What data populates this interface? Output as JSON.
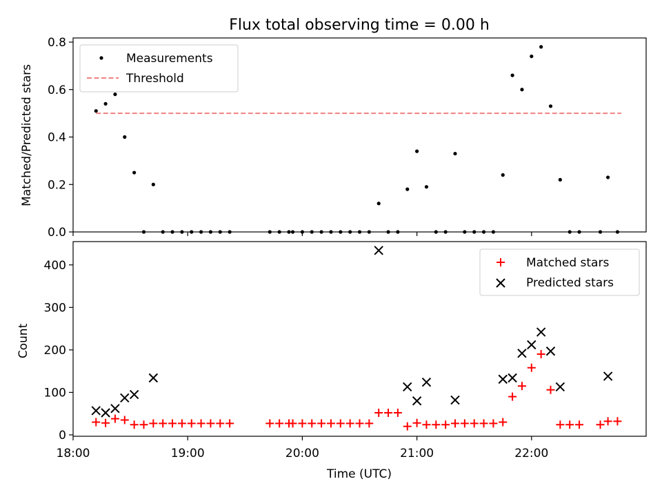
{
  "chart_data": [
    {
      "type": "scatter",
      "title": "Flux total observing time = 0.00 h",
      "xlabel": "",
      "ylabel": "Matched/Predicted stars",
      "xlim": [
        "18:00",
        "23:00"
      ],
      "ylim": [
        0,
        0.8
      ],
      "yticks": [
        "0.0",
        "0.2",
        "0.4",
        "0.6",
        "0.8"
      ],
      "legend": {
        "placement": "upper-left",
        "entries": [
          "Measurements",
          "Threshold"
        ]
      },
      "threshold": {
        "name": "Threshold",
        "value": 0.5,
        "x_start": "18:12",
        "x_end": "22:47",
        "color": "#f08080"
      },
      "series": [
        {
          "name": "Measurements",
          "color": "#000000",
          "x": [
            "18:12",
            "18:17",
            "18:22",
            "18:27",
            "18:32",
            "18:37",
            "18:42",
            "18:47",
            "18:52",
            "18:57",
            "19:02",
            "19:07",
            "19:12",
            "19:17",
            "19:22",
            "19:43",
            "19:48",
            "19:53",
            "19:55",
            "20:00",
            "20:05",
            "20:10",
            "20:15",
            "20:20",
            "20:25",
            "20:30",
            "20:35",
            "20:40",
            "20:45",
            "20:50",
            "20:55",
            "21:00",
            "21:05",
            "21:10",
            "21:15",
            "21:20",
            "21:25",
            "21:30",
            "21:35",
            "21:40",
            "21:45",
            "21:50",
            "21:55",
            "22:00",
            "22:05",
            "22:10",
            "22:15",
            "22:20",
            "22:25",
            "22:36",
            "22:40",
            "22:45"
          ],
          "y": [
            0.51,
            0.54,
            0.58,
            0.4,
            0.25,
            0,
            0.2,
            0,
            0,
            0,
            0,
            0,
            0,
            0,
            0,
            0,
            0,
            0,
            0,
            0,
            0,
            0,
            0,
            0,
            0,
            0,
            0,
            0.12,
            0,
            0,
            0.18,
            0.34,
            0.19,
            0,
            0,
            0.33,
            0,
            0,
            0,
            0,
            0.24,
            0.66,
            0.6,
            0.74,
            0.78,
            0.53,
            0.22,
            0,
            0,
            0,
            0.23,
            0
          ]
        }
      ]
    },
    {
      "type": "scatter",
      "title": "",
      "xlabel": "Time (UTC)",
      "ylabel": "Count",
      "xlim": [
        "18:00",
        "23:00"
      ],
      "ylim": [
        0,
        450
      ],
      "yticks": [
        "0",
        "100",
        "200",
        "300",
        "400"
      ],
      "xticks": [
        "18:00",
        "19:00",
        "20:00",
        "21:00",
        "22:00"
      ],
      "legend": {
        "placement": "upper-right",
        "entries": [
          "Matched stars",
          "Predicted stars"
        ]
      },
      "series": [
        {
          "name": "Matched stars",
          "marker": "plus",
          "color": "#ff0000",
          "x": [
            "18:12",
            "18:17",
            "18:22",
            "18:27",
            "18:32",
            "18:37",
            "18:42",
            "18:47",
            "18:52",
            "18:57",
            "19:02",
            "19:07",
            "19:12",
            "19:17",
            "19:22",
            "19:43",
            "19:48",
            "19:53",
            "19:55",
            "20:00",
            "20:05",
            "20:10",
            "20:15",
            "20:20",
            "20:25",
            "20:30",
            "20:35",
            "20:40",
            "20:45",
            "20:50",
            "20:55",
            "21:00",
            "21:05",
            "21:10",
            "21:15",
            "21:20",
            "21:25",
            "21:30",
            "21:35",
            "21:40",
            "21:45",
            "21:50",
            "21:55",
            "22:00",
            "22:05",
            "22:10",
            "22:15",
            "22:20",
            "22:25",
            "22:36",
            "22:40",
            "22:45"
          ],
          "y": [
            30,
            28,
            38,
            35,
            24,
            24,
            27,
            27,
            27,
            27,
            27,
            27,
            27,
            27,
            27,
            27,
            27,
            27,
            27,
            27,
            27,
            27,
            27,
            27,
            27,
            27,
            27,
            52,
            52,
            52,
            20,
            28,
            24,
            24,
            24,
            27,
            27,
            27,
            27,
            27,
            30,
            90,
            115,
            158,
            190,
            106,
            24,
            24,
            24,
            24,
            32,
            32
          ]
        },
        {
          "name": "Predicted stars",
          "marker": "x",
          "color": "#000000",
          "x": [
            "18:12",
            "18:17",
            "18:22",
            "18:27",
            "18:32",
            "18:42",
            "20:40",
            "20:55",
            "21:00",
            "21:05",
            "21:20",
            "21:45",
            "21:50",
            "21:55",
            "22:00",
            "22:05",
            "22:10",
            "22:15",
            "22:40"
          ],
          "y": [
            57,
            52,
            62,
            87,
            95,
            134,
            434,
            113,
            80,
            124,
            82,
            131,
            134,
            192,
            212,
            242,
            197,
            113,
            138
          ]
        }
      ]
    }
  ]
}
